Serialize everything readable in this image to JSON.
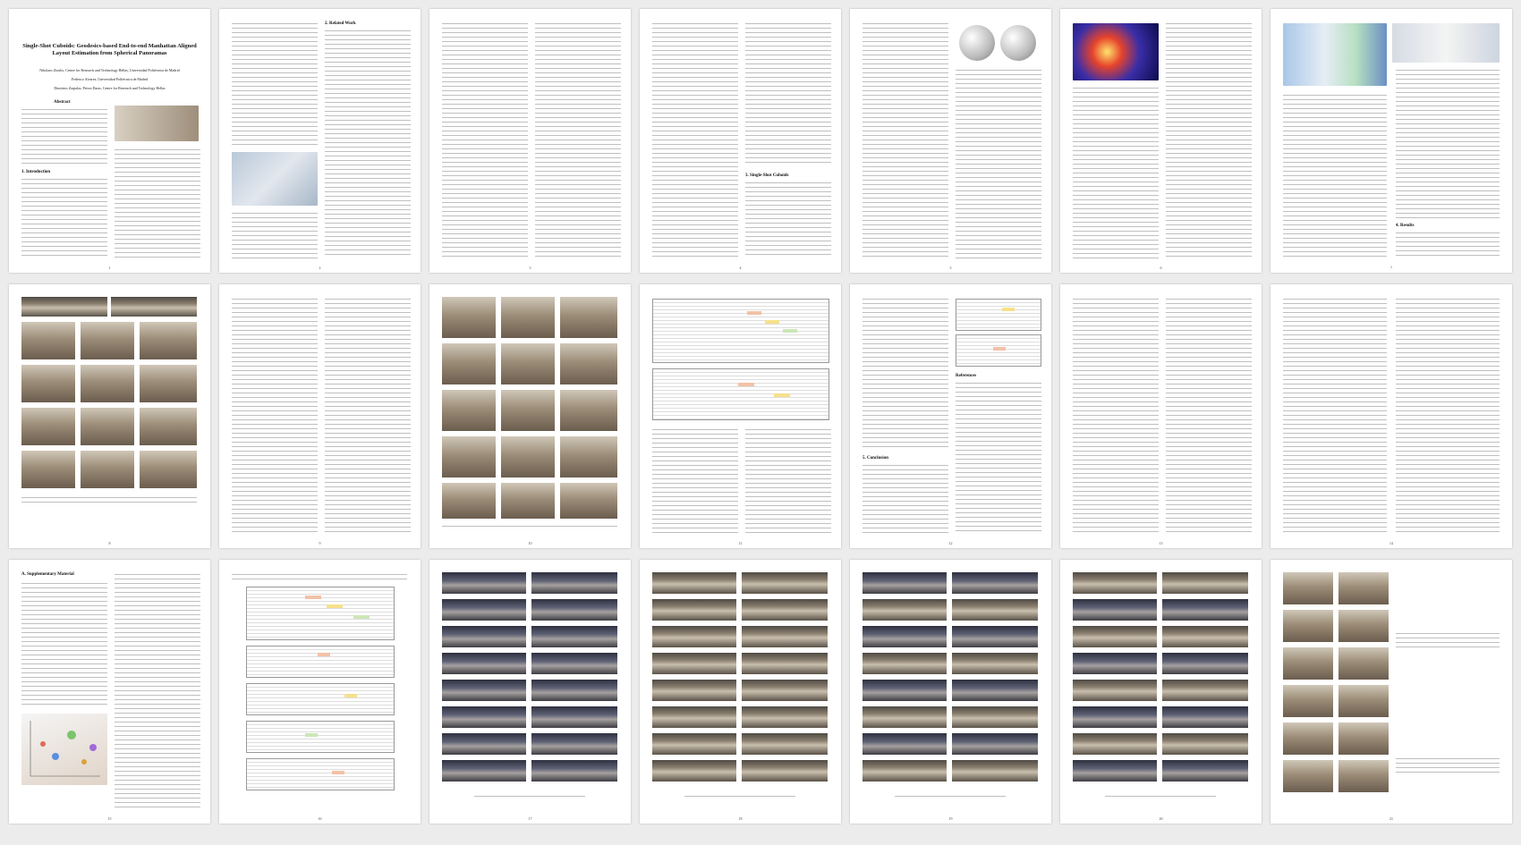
{
  "paper": {
    "title": "Single-Shot Cuboids: Geodesics-based End-to-end Manhattan Aligned Layout Estimation from Spherical Panoramas",
    "authors": [
      "Nikolaos Zioulis, Centre for Research and Technology Hellas, Universidad Politécnica de Madrid",
      "Federico Alvarez, Universidad Politécnica de Madrid",
      "Dimitrios Zarpalas, Petros Daras, Centre for Research and Technology Hellas"
    ],
    "section_labels": {
      "abstract": "Abstract",
      "intro": "1. Introduction",
      "related": "2. Related Work",
      "method": "3. Single-Shot Cuboids",
      "results": "4. Results",
      "conclusion": "5. Conclusion",
      "references": "References",
      "supplementary": "A. Supplementary Material"
    }
  },
  "pages": [
    {
      "num": "1"
    },
    {
      "num": "2"
    },
    {
      "num": "3"
    },
    {
      "num": "4"
    },
    {
      "num": "5"
    },
    {
      "num": "6"
    },
    {
      "num": "7"
    },
    {
      "num": "8"
    },
    {
      "num": "9"
    },
    {
      "num": "10"
    },
    {
      "num": "11"
    },
    {
      "num": "12"
    },
    {
      "num": "13"
    },
    {
      "num": "14"
    },
    {
      "num": "15"
    },
    {
      "num": "16"
    },
    {
      "num": "17"
    },
    {
      "num": "18"
    },
    {
      "num": "19"
    },
    {
      "num": "20"
    },
    {
      "num": "21"
    }
  ]
}
